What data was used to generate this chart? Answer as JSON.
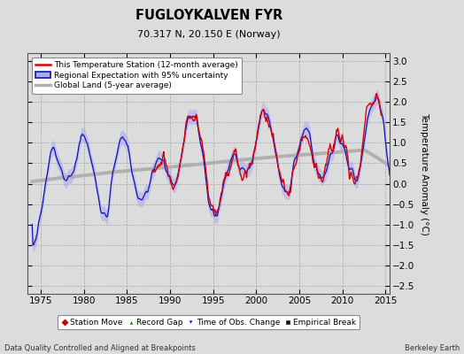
{
  "title": "FUGLOYKALVEN FYR",
  "subtitle": "70.317 N, 20.150 E (Norway)",
  "xlabel_left": "Data Quality Controlled and Aligned at Breakpoints",
  "xlabel_right": "Berkeley Earth",
  "ylabel": "Temperature Anomaly (°C)",
  "xlim": [
    1973.5,
    2015.5
  ],
  "ylim": [
    -2.7,
    3.2
  ],
  "yticks": [
    -2.5,
    -2,
    -1.5,
    -1,
    -0.5,
    0,
    0.5,
    1,
    1.5,
    2,
    2.5,
    3
  ],
  "xticks": [
    1975,
    1980,
    1985,
    1990,
    1995,
    2000,
    2005,
    2010,
    2015
  ],
  "bg_color": "#dcdcdc",
  "plot_bg_color": "#dcdcdc",
  "red_color": "#dd0000",
  "blue_color": "#1111bb",
  "blue_fill_color": "#aaaaee",
  "gray_color": "#b0b0b0",
  "legend_bg": "#ffffff",
  "seed": 7
}
